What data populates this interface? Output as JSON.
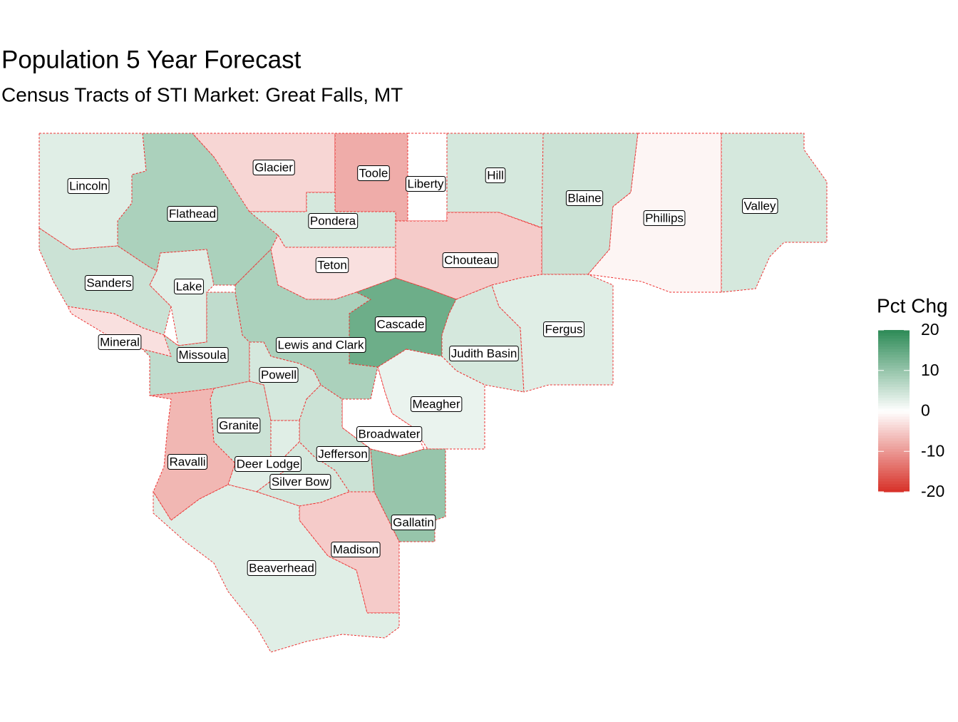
{
  "title": "Population 5 Year Forecast",
  "subtitle": "Census Tracts of STI Market: Great Falls, MT",
  "legend": {
    "title": "Pct Chg",
    "ticks": [
      20,
      10,
      0,
      -10,
      -20
    ],
    "lim": [
      -20,
      20
    ],
    "low": "#d73027",
    "mid": "#ffffff",
    "high": "#2e8b57"
  },
  "counties": [
    {
      "name": "Lincoln",
      "value": 3
    },
    {
      "name": "Flathead",
      "value": 8
    },
    {
      "name": "Glacier",
      "value": -4
    },
    {
      "name": "Toole",
      "value": -8
    },
    {
      "name": "Liberty",
      "value": 0
    },
    {
      "name": "Hill",
      "value": 4
    },
    {
      "name": "Blaine",
      "value": 5
    },
    {
      "name": "Phillips",
      "value": -1
    },
    {
      "name": "Valley",
      "value": 4
    },
    {
      "name": "Pondera",
      "value": 4
    },
    {
      "name": "Teton",
      "value": -3
    },
    {
      "name": "Chouteau",
      "value": -5
    },
    {
      "name": "Sanders",
      "value": 5
    },
    {
      "name": "Lake",
      "value": 3
    },
    {
      "name": "Mineral",
      "value": -3
    },
    {
      "name": "Missoula",
      "value": 6
    },
    {
      "name": "Lewis and Clark",
      "value": 8
    },
    {
      "name": "Cascade",
      "value": 14
    },
    {
      "name": "Judith Basin",
      "value": 4
    },
    {
      "name": "Fergus",
      "value": 3
    },
    {
      "name": "Powell",
      "value": 4
    },
    {
      "name": "Meagher",
      "value": 2
    },
    {
      "name": "Broadwater",
      "value": 0
    },
    {
      "name": "Jefferson",
      "value": 5
    },
    {
      "name": "Granite",
      "value": 5
    },
    {
      "name": "Ravalli",
      "value": -7
    },
    {
      "name": "Deer Lodge",
      "value": 3
    },
    {
      "name": "Silver Bow",
      "value": 4
    },
    {
      "name": "Gallatin",
      "value": 10
    },
    {
      "name": "Madison",
      "value": -5
    },
    {
      "name": "Beaverhead",
      "value": 3
    }
  ]
}
